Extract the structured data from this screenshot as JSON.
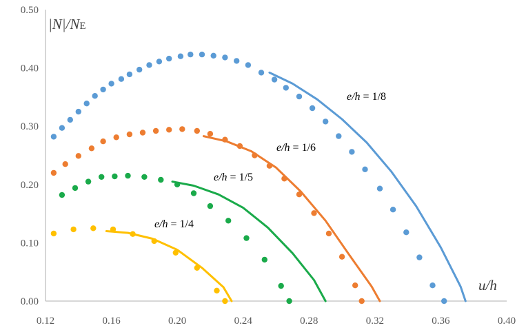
{
  "chart_data": {
    "type": "scatter",
    "title": "",
    "xlabel": "u/h",
    "ylabel": "|N|/NE",
    "xlim": [
      0.12,
      0.4
    ],
    "ylim": [
      0.0,
      0.5
    ],
    "xticks": [
      "0.12",
      "0.16",
      "0.20",
      "0.24",
      "0.28",
      "0.32",
      "0.36",
      "0.40"
    ],
    "yticks": [
      "0.00",
      "0.10",
      "0.20",
      "0.30",
      "0.40",
      "0.50"
    ],
    "grid": false,
    "legend": "none",
    "series": [
      {
        "name": "e/h = 1/8",
        "color": "#5b9bd5",
        "points": [
          [
            0.125,
            0.282
          ],
          [
            0.13,
            0.297
          ],
          [
            0.135,
            0.311
          ],
          [
            0.14,
            0.325
          ],
          [
            0.145,
            0.339
          ],
          [
            0.15,
            0.352
          ],
          [
            0.155,
            0.363
          ],
          [
            0.16,
            0.373
          ],
          [
            0.166,
            0.381
          ],
          [
            0.171,
            0.389
          ],
          [
            0.177,
            0.397
          ],
          [
            0.183,
            0.405
          ],
          [
            0.189,
            0.411
          ],
          [
            0.195,
            0.416
          ],
          [
            0.202,
            0.42
          ],
          [
            0.208,
            0.423
          ],
          [
            0.215,
            0.423
          ],
          [
            0.222,
            0.421
          ],
          [
            0.229,
            0.418
          ],
          [
            0.236,
            0.412
          ],
          [
            0.243,
            0.405
          ],
          [
            0.251,
            0.392
          ],
          [
            0.259,
            0.38
          ],
          [
            0.266,
            0.366
          ],
          [
            0.274,
            0.351
          ],
          [
            0.282,
            0.331
          ],
          [
            0.29,
            0.308
          ],
          [
            0.298,
            0.283
          ],
          [
            0.306,
            0.256
          ],
          [
            0.314,
            0.226
          ],
          [
            0.323,
            0.193
          ],
          [
            0.331,
            0.157
          ],
          [
            0.339,
            0.118
          ],
          [
            0.347,
            0.075
          ],
          [
            0.355,
            0.027
          ],
          [
            0.362,
            0.0
          ]
        ],
        "curve": [
          [
            0.256,
            0.392
          ],
          [
            0.27,
            0.373
          ],
          [
            0.285,
            0.346
          ],
          [
            0.3,
            0.312
          ],
          [
            0.315,
            0.272
          ],
          [
            0.33,
            0.222
          ],
          [
            0.345,
            0.163
          ],
          [
            0.36,
            0.092
          ],
          [
            0.372,
            0.025
          ],
          [
            0.375,
            0.0
          ]
        ]
      },
      {
        "name": "e/h = 1/6",
        "color": "#ed7d31",
        "points": [
          [
            0.125,
            0.22
          ],
          [
            0.132,
            0.235
          ],
          [
            0.14,
            0.249
          ],
          [
            0.148,
            0.262
          ],
          [
            0.155,
            0.274
          ],
          [
            0.163,
            0.281
          ],
          [
            0.171,
            0.286
          ],
          [
            0.179,
            0.289
          ],
          [
            0.187,
            0.292
          ],
          [
            0.195,
            0.294
          ],
          [
            0.203,
            0.295
          ],
          [
            0.212,
            0.292
          ],
          [
            0.22,
            0.287
          ],
          [
            0.229,
            0.277
          ],
          [
            0.238,
            0.266
          ],
          [
            0.247,
            0.25
          ],
          [
            0.256,
            0.232
          ],
          [
            0.265,
            0.21
          ],
          [
            0.274,
            0.183
          ],
          [
            0.283,
            0.151
          ],
          [
            0.292,
            0.116
          ],
          [
            0.3,
            0.076
          ],
          [
            0.308,
            0.027
          ],
          [
            0.312,
            0.0
          ]
        ],
        "curve": [
          [
            0.216,
            0.283
          ],
          [
            0.23,
            0.274
          ],
          [
            0.245,
            0.257
          ],
          [
            0.26,
            0.229
          ],
          [
            0.275,
            0.188
          ],
          [
            0.29,
            0.138
          ],
          [
            0.305,
            0.077
          ],
          [
            0.318,
            0.025
          ],
          [
            0.323,
            0.0
          ]
        ]
      },
      {
        "name": "e/h = 1/5",
        "color": "#1aaa4a",
        "points": [
          [
            0.13,
            0.182
          ],
          [
            0.138,
            0.194
          ],
          [
            0.146,
            0.205
          ],
          [
            0.154,
            0.213
          ],
          [
            0.162,
            0.214
          ],
          [
            0.17,
            0.215
          ],
          [
            0.18,
            0.213
          ],
          [
            0.19,
            0.208
          ],
          [
            0.2,
            0.2
          ],
          [
            0.21,
            0.185
          ],
          [
            0.22,
            0.163
          ],
          [
            0.231,
            0.138
          ],
          [
            0.242,
            0.108
          ],
          [
            0.253,
            0.071
          ],
          [
            0.263,
            0.026
          ],
          [
            0.268,
            0.0
          ]
        ],
        "curve": [
          [
            0.197,
            0.205
          ],
          [
            0.21,
            0.198
          ],
          [
            0.225,
            0.183
          ],
          [
            0.24,
            0.16
          ],
          [
            0.255,
            0.126
          ],
          [
            0.27,
            0.082
          ],
          [
            0.283,
            0.036
          ],
          [
            0.29,
            0.0
          ]
        ]
      },
      {
        "name": "e/h = 1/4",
        "color": "#ffc000",
        "points": [
          [
            0.125,
            0.116
          ],
          [
            0.137,
            0.123
          ],
          [
            0.149,
            0.125
          ],
          [
            0.161,
            0.123
          ],
          [
            0.173,
            0.115
          ],
          [
            0.186,
            0.103
          ],
          [
            0.199,
            0.083
          ],
          [
            0.212,
            0.057
          ],
          [
            0.224,
            0.018
          ],
          [
            0.229,
            0.0
          ]
        ],
        "curve": [
          [
            0.157,
            0.12
          ],
          [
            0.17,
            0.117
          ],
          [
            0.185,
            0.107
          ],
          [
            0.2,
            0.088
          ],
          [
            0.215,
            0.057
          ],
          [
            0.228,
            0.024
          ],
          [
            0.233,
            0.0
          ]
        ]
      }
    ]
  },
  "labels": {
    "s18": "e/h = 1/8",
    "s16": "e/h = 1/6",
    "s15": "e/h = 1/5",
    "s14": "e/h = 1/4"
  }
}
